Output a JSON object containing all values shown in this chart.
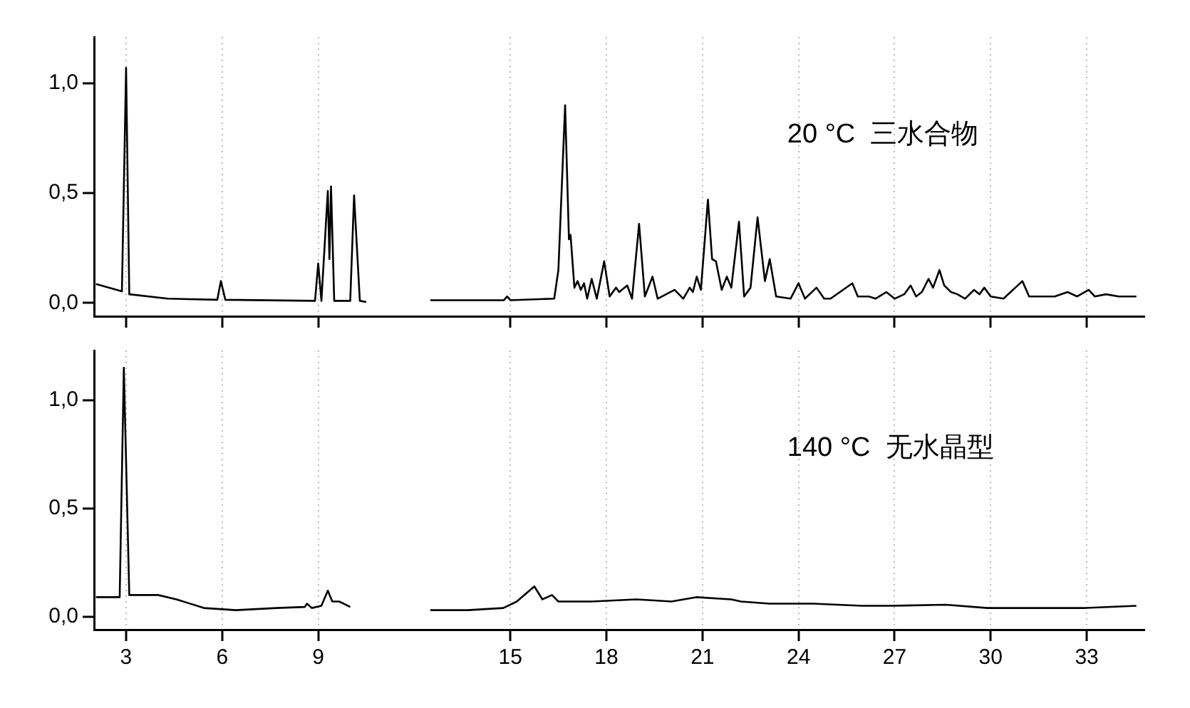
{
  "chart_data": [
    {
      "type": "line",
      "xlim": [
        2,
        34.8
      ],
      "xticks": [
        3,
        6,
        9,
        15,
        18,
        21,
        24,
        27,
        30,
        33
      ],
      "ylim": [
        -0.06,
        1.21
      ],
      "yticks": [
        {
          "value": 0,
          "label": "0,0"
        },
        {
          "value": 0.5,
          "label": "0,5"
        },
        {
          "value": 1,
          "label": "1,0"
        }
      ],
      "grid": "x",
      "tick_labels": "y",
      "annotations": [
        "20 °C  三水合物"
      ],
      "series": [
        {
          "color": "#000000",
          "x": [
            2.06,
            2.87,
            3.0,
            3.1,
            4.3,
            5.85,
            5.96,
            6.1,
            8.9,
            9.0,
            9.1,
            9.3,
            9.35,
            9.4,
            9.5,
            10.0,
            10.12,
            10.3,
            10.5,
            11.5,
            12.5,
            14.8,
            14.9,
            15.0,
            16.37,
            16.5,
            16.71,
            16.83,
            16.88,
            17.0,
            17.1,
            17.2,
            17.3,
            17.4,
            17.54,
            17.7,
            17.93,
            18.1,
            18.3,
            18.4,
            18.65,
            18.8,
            19.02,
            19.2,
            19.44,
            19.6,
            20.13,
            20.4,
            20.6,
            20.7,
            20.82,
            20.95,
            21.17,
            21.3,
            21.42,
            21.6,
            21.76,
            21.9,
            22.14,
            22.3,
            22.5,
            22.72,
            22.95,
            23.1,
            23.3,
            23.75,
            24.0,
            24.2,
            24.56,
            24.8,
            25.0,
            25.68,
            25.85,
            26.2,
            26.4,
            26.74,
            27.0,
            27.3,
            27.5,
            27.67,
            27.85,
            28.06,
            28.2,
            28.4,
            28.55,
            28.76,
            28.96,
            29.2,
            29.48,
            29.65,
            29.8,
            30.0,
            30.4,
            30.99,
            31.2,
            31.6,
            32.0,
            32.4,
            32.7,
            33.06,
            33.25,
            33.6,
            34.0,
            34.55
          ],
          "values": [
            0.087,
            0.053,
            1.07,
            0.04,
            0.02,
            0.015,
            0.1,
            0.015,
            0.01,
            0.18,
            0.01,
            0.51,
            0.2,
            0.53,
            0.01,
            0.01,
            0.49,
            0.01,
            0.005,
            null,
            0.013,
            0.013,
            0.03,
            0.013,
            0.02,
            0.15,
            0.9,
            0.29,
            0.31,
            0.07,
            0.1,
            0.06,
            0.09,
            0.02,
            0.11,
            0.02,
            0.19,
            0.03,
            0.07,
            0.05,
            0.08,
            0.02,
            0.36,
            0.03,
            0.12,
            0.02,
            0.06,
            0.02,
            0.07,
            0.05,
            0.12,
            0.06,
            0.47,
            0.2,
            0.19,
            0.06,
            0.12,
            0.07,
            0.37,
            0.03,
            0.07,
            0.39,
            0.1,
            0.2,
            0.03,
            0.02,
            0.09,
            0.02,
            0.07,
            0.02,
            0.02,
            0.09,
            0.03,
            0.03,
            0.02,
            0.05,
            0.02,
            0.04,
            0.08,
            0.03,
            0.05,
            0.11,
            0.07,
            0.15,
            0.08,
            0.05,
            0.04,
            0.02,
            0.06,
            0.04,
            0.07,
            0.03,
            0.02,
            0.1,
            0.03,
            0.03,
            0.03,
            0.05,
            0.03,
            0.06,
            0.03,
            0.04,
            0.03,
            0.03
          ]
        }
      ]
    },
    {
      "type": "line",
      "xlim": [
        2,
        34.8
      ],
      "xticks": [
        3,
        6,
        9,
        15,
        18,
        21,
        24,
        27,
        30,
        33
      ],
      "ylim": [
        -0.06,
        1.23
      ],
      "yticks": [
        {
          "value": 0,
          "label": "0,0"
        },
        {
          "value": 0.5,
          "label": "0,5"
        },
        {
          "value": 1,
          "label": "1,0"
        }
      ],
      "grid": "x",
      "annotations": [
        "140 °C  无水晶型"
      ],
      "series": [
        {
          "color": "#000000",
          "x": [
            2.06,
            2.8,
            2.93,
            3.1,
            4.0,
            4.57,
            5.43,
            6.43,
            7.7,
            8.58,
            8.65,
            8.8,
            9.1,
            9.3,
            9.44,
            9.65,
            9.8,
            10.0,
            11.5,
            12.5,
            13.67,
            14.78,
            15.2,
            15.75,
            16.0,
            16.3,
            16.5,
            17.54,
            18.93,
            19.5,
            20.03,
            20.8,
            21.9,
            22.2,
            23.1,
            24.46,
            25.98,
            26.6,
            26.8,
            28.6,
            29.9,
            32.9,
            34.55
          ],
          "values": [
            0.09,
            0.09,
            1.15,
            0.1,
            0.1,
            0.08,
            0.04,
            0.03,
            0.04,
            0.045,
            0.06,
            0.04,
            0.05,
            0.12,
            0.07,
            0.07,
            0.06,
            0.045,
            null,
            0.03,
            0.03,
            0.04,
            0.07,
            0.14,
            0.08,
            0.1,
            0.07,
            0.07,
            0.08,
            0.075,
            0.07,
            0.09,
            0.08,
            0.07,
            0.06,
            0.06,
            0.05,
            0.05,
            0.05,
            0.055,
            0.04,
            0.04,
            0.05
          ]
        }
      ]
    }
  ]
}
